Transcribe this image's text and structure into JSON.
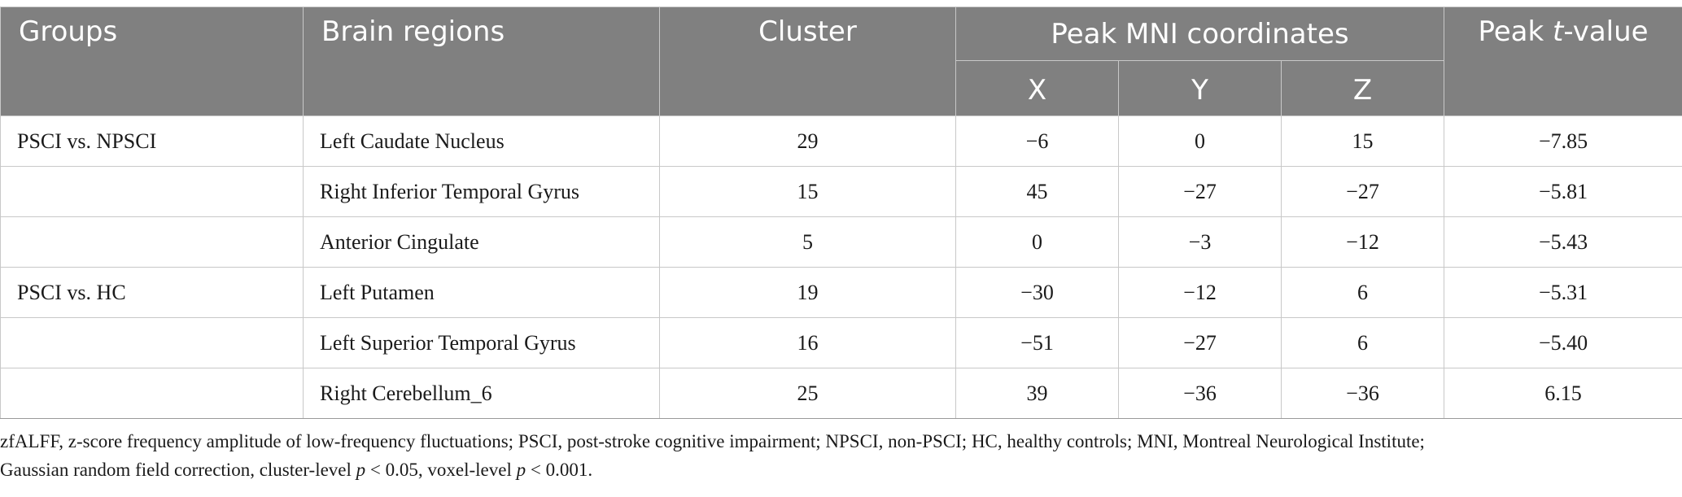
{
  "table": {
    "headers": {
      "groups": "Groups",
      "brain_regions": "Brain regions",
      "cluster": "Cluster",
      "peak_mni": "Peak MNI coordinates",
      "x": "X",
      "y": "Y",
      "z": "Z",
      "peak_t_prefix": "Peak ",
      "peak_t_italic": "t",
      "peak_t_suffix": "-value"
    },
    "rows": [
      {
        "group": "PSCI vs. NPSCI",
        "region": "Left Caudate Nucleus",
        "cluster": "29",
        "x": "−6",
        "y": "0",
        "z": "15",
        "t": "−7.85"
      },
      {
        "group": "",
        "region": "Right Inferior Temporal Gyrus",
        "cluster": "15",
        "x": "45",
        "y": "−27",
        "z": "−27",
        "t": "−5.81"
      },
      {
        "group": "",
        "region": "Anterior Cingulate",
        "cluster": "5",
        "x": "0",
        "y": "−3",
        "z": "−12",
        "t": "−5.43"
      },
      {
        "group": "PSCI vs. HC",
        "region": "Left Putamen",
        "cluster": "19",
        "x": "−30",
        "y": "−12",
        "z": "6",
        "t": "−5.31"
      },
      {
        "group": "",
        "region": "Left Superior Temporal Gyrus",
        "cluster": "16",
        "x": "−51",
        "y": "−27",
        "z": "6",
        "t": "−5.40"
      },
      {
        "group": "",
        "region": "Right Cerebellum_6",
        "cluster": "25",
        "x": "39",
        "y": "−36",
        "z": "−36",
        "t": "6.15"
      }
    ]
  },
  "footnote": {
    "line1": "zfALFF, z-score frequency amplitude of low-frequency fluctuations; PSCI, post-stroke cognitive impairment; NPSCI, non-PSCI; HC, healthy controls; MNI, Montreal Neurological Institute;",
    "line2_a": "Gaussian random field correction, cluster-level ",
    "line2_p1": "p",
    "line2_b": " < 0.05, voxel-level ",
    "line2_p2": "p",
    "line2_c": " < 0.001."
  }
}
